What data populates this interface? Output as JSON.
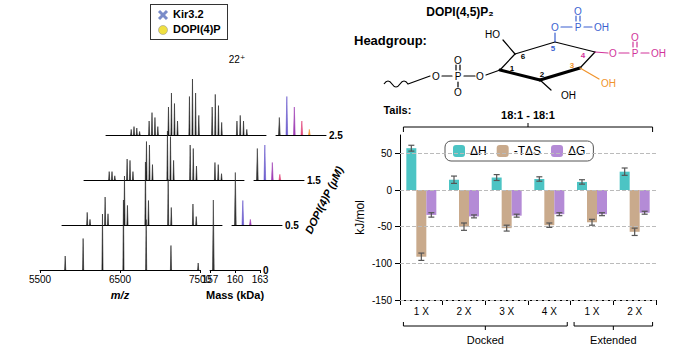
{
  "chart_data": [
    {
      "type": "spectrum",
      "x_label": "m/z",
      "xlim": [
        5500,
        7500
      ],
      "xticks": [
        5500,
        6500,
        7500
      ],
      "ylim": [
        0,
        100
      ],
      "tick_labels": "x",
      "annotations": [
        {
          "text": "22⁺",
          "x": 7137
        }
      ],
      "series": [
        {
          "color": "#222222",
          "peaks": [
            [
              5815,
              20
            ],
            [
              6039,
              45
            ],
            [
              6281,
              80
            ],
            [
              6543,
              100
            ],
            [
              6827,
              72
            ],
            [
              7137,
              35
            ],
            [
              7477,
              10
            ]
          ]
        },
        {
          "color": "#222222",
          "peaks": [
            [
              5815,
              18
            ],
            [
              5850,
              8
            ],
            [
              6039,
              40
            ],
            [
              6075,
              16
            ],
            [
              6281,
              70
            ],
            [
              6318,
              28
            ],
            [
              6543,
              90
            ],
            [
              6581,
              35
            ],
            [
              6827,
              65
            ],
            [
              6866,
              25
            ],
            [
              7137,
              30
            ],
            [
              7178,
              12
            ]
          ]
        },
        {
          "color": "#222222",
          "peaks": [
            [
              5815,
              12
            ],
            [
              5850,
              12
            ],
            [
              5885,
              6
            ],
            [
              6039,
              30
            ],
            [
              6075,
              28
            ],
            [
              6112,
              12
            ],
            [
              6281,
              55
            ],
            [
              6318,
              50
            ],
            [
              6356,
              22
            ],
            [
              6543,
              70
            ],
            [
              6581,
              62
            ],
            [
              6620,
              28
            ],
            [
              6827,
              50
            ],
            [
              6866,
              45
            ],
            [
              6906,
              20
            ],
            [
              7137,
              25
            ],
            [
              7178,
              22
            ],
            [
              7219,
              9
            ]
          ]
        },
        {
          "color": "#222222",
          "peaks": [
            [
              5815,
              8
            ],
            [
              5850,
              12
            ],
            [
              5885,
              10
            ],
            [
              5920,
              5
            ],
            [
              6039,
              20
            ],
            [
              6075,
              32
            ],
            [
              6112,
              25
            ],
            [
              6148,
              12
            ],
            [
              6281,
              40
            ],
            [
              6318,
              60
            ],
            [
              6356,
              45
            ],
            [
              6394,
              20
            ],
            [
              6543,
              55
            ],
            [
              6581,
              80
            ],
            [
              6620,
              60
            ],
            [
              6660,
              28
            ],
            [
              6827,
              40
            ],
            [
              6866,
              58
            ],
            [
              6906,
              42
            ],
            [
              6946,
              18
            ],
            [
              7137,
              20
            ],
            [
              7178,
              28
            ],
            [
              7219,
              20
            ],
            [
              7260,
              8
            ]
          ]
        }
      ]
    },
    {
      "type": "spectrum",
      "x_label": "Mass (kDa)",
      "z_label": "DOPI(4)P (μM)",
      "xlim": [
        157,
        163
      ],
      "xticks": [
        157,
        160,
        163
      ],
      "ylim": [
        0,
        100
      ],
      "tick_labels": "x",
      "state_colors": [
        "#333333",
        "#6a5acd",
        "#a03fb5",
        "#e0457b",
        "#f39a3d"
      ],
      "legend_items": [
        {
          "label": "Kir3.2",
          "marker": "cross",
          "color": "#7a8cc9"
        },
        {
          "label": "DOPI(4)P",
          "marker": "circle",
          "color": "#f0e040"
        }
      ],
      "series": [
        {
          "concentration": 0,
          "peaks": [
            [
              157.4,
              100,
              0
            ]
          ]
        },
        {
          "concentration": 0.5,
          "peaks": [
            [
              157.4,
              75,
              0
            ],
            [
              158.3,
              35,
              1
            ],
            [
              159.2,
              8,
              2
            ]
          ]
        },
        {
          "concentration": 1.5,
          "peaks": [
            [
              157.4,
              45,
              0
            ],
            [
              158.3,
              50,
              1
            ],
            [
              159.2,
              25,
              2
            ],
            [
              160.1,
              8,
              3
            ]
          ]
        },
        {
          "concentration": 2.5,
          "peaks": [
            [
              157.4,
              25,
              0
            ],
            [
              158.3,
              55,
              1
            ],
            [
              159.2,
              40,
              2
            ],
            [
              160.1,
              20,
              3
            ],
            [
              161.0,
              8,
              4
            ]
          ]
        }
      ]
    },
    {
      "type": "bar",
      "y_label": "kJ/mol",
      "header": {
        "label": "Tails:",
        "text": "18:1 - 18:1"
      },
      "categories": [
        "1 X",
        "2 X",
        "3 X",
        "4 X",
        "1 X",
        "2 X"
      ],
      "groups": [
        {
          "label": "Docked",
          "start": 0,
          "end": 3
        },
        {
          "label": "Extended",
          "start": 4,
          "end": 5
        }
      ],
      "ylim": [
        -150,
        75
      ],
      "yticks": [
        -150,
        -100,
        -50,
        0,
        50
      ],
      "grid": true,
      "legend": "top",
      "series": [
        {
          "name": "ΔH",
          "color": "#4cc4c4",
          "values": [
            57,
            14,
            17,
            15,
            11,
            25
          ],
          "errors": [
            4,
            5,
            4,
            3,
            3,
            5
          ]
        },
        {
          "name": "-TΔS",
          "color": "#c9aa8c",
          "values": [
            -91,
            -50,
            -52,
            -48,
            -44,
            -57
          ],
          "errors": [
            5,
            5,
            4,
            3,
            4,
            5
          ]
        },
        {
          "name": "ΔG",
          "color": "#b48bd6",
          "values": [
            -34,
            -36,
            -35,
            -33,
            -33,
            -31
          ],
          "errors": [
            3,
            2,
            2,
            2,
            2,
            2
          ]
        }
      ]
    }
  ],
  "structure": {
    "title": "DOPI(4,5)P₂",
    "label": "Headgroup:",
    "ring_numbers": [
      {
        "text": "1",
        "color": "#000000"
      },
      {
        "text": "2",
        "color": "#000000"
      },
      {
        "text": "3",
        "color": "#f0932b"
      },
      {
        "text": "4",
        "color": "#d1349a"
      },
      {
        "text": "5",
        "color": "#3a5fcf"
      },
      {
        "text": "6",
        "color": "#000000"
      }
    ],
    "atoms": [
      {
        "text": "HO",
        "color": "#000000"
      },
      {
        "text": "OH",
        "color": "#000000"
      },
      {
        "text": "OH",
        "color": "#f0932b"
      },
      {
        "text": "O",
        "color": "#d1349a"
      },
      {
        "text": "P",
        "color": "#d1349a"
      },
      {
        "text": "O",
        "color": "#d1349a"
      },
      {
        "text": "OH",
        "color": "#d1349a"
      },
      {
        "text": "O",
        "color": "#3a5fcf"
      },
      {
        "text": "P",
        "color": "#3a5fcf"
      },
      {
        "text": "O",
        "color": "#3a5fcf"
      },
      {
        "text": "OH",
        "color": "#3a5fcf"
      },
      {
        "text": "O",
        "color": "#000000"
      },
      {
        "text": "P",
        "color": "#000000"
      },
      {
        "text": "O",
        "color": "#000000"
      },
      {
        "text": "O",
        "color": "#000000"
      },
      {
        "text": "O",
        "color": "#000000"
      }
    ]
  }
}
